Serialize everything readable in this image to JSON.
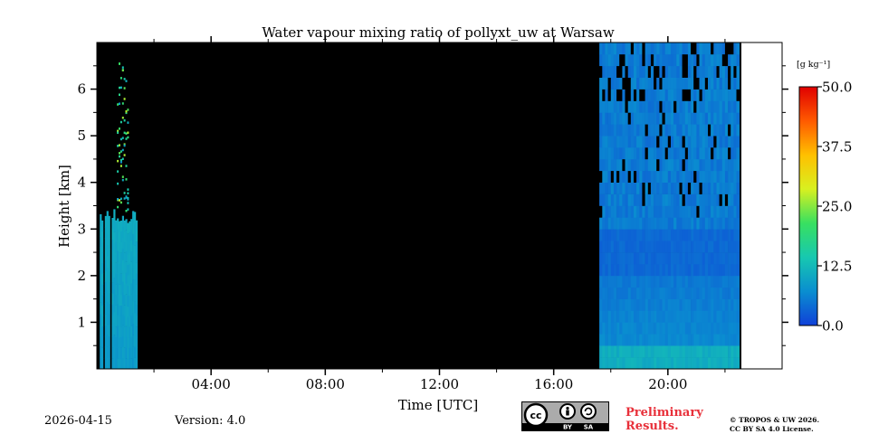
{
  "chart_data": {
    "type": "heatmap",
    "title": "Water vapour mixing ratio of pollyxt_uw at Warsaw",
    "xlabel": "Time [UTC]",
    "ylabel": "Height [km]",
    "xlim_hours": [
      0,
      24
    ],
    "ylim_km": [
      0,
      7
    ],
    "x_ticks": [
      {
        "value": 4,
        "label": "04:00"
      },
      {
        "value": 8,
        "label": "08:00"
      },
      {
        "value": 12,
        "label": "12:00"
      },
      {
        "value": 16,
        "label": "16:00"
      },
      {
        "value": 20,
        "label": "20:00"
      }
    ],
    "y_ticks": [
      {
        "value": 1,
        "label": "1"
      },
      {
        "value": 2,
        "label": "2"
      },
      {
        "value": 3,
        "label": "3"
      },
      {
        "value": 4,
        "label": "4"
      },
      {
        "value": 5,
        "label": "5"
      },
      {
        "value": 6,
        "label": "6"
      }
    ],
    "colorbar": {
      "label": "[g kg⁻¹]",
      "range": [
        0,
        50
      ],
      "ticks": [
        {
          "value": 0,
          "label": "0.0"
        },
        {
          "value": 12.5,
          "label": "12.5"
        },
        {
          "value": 25,
          "label": "25.0"
        },
        {
          "value": 37.5,
          "label": "37.5"
        },
        {
          "value": 50,
          "label": "50.0"
        }
      ],
      "colors": [
        "#1040d8",
        "#0a8ed0",
        "#17c8b0",
        "#38e060",
        "#d8f020",
        "#ffc000",
        "#ff5a00",
        "#e00000"
      ]
    },
    "no_data_color": "#000000",
    "segments": [
      {
        "name": "early-morning-profiles",
        "time_start": 0.1,
        "time_end": 1.4,
        "moist_top_km": 3.4,
        "value_low": 8.0,
        "value_high": 10.0
      },
      {
        "name": "no-data-period",
        "time_start": 1.4,
        "time_end": 17.6,
        "value": null
      },
      {
        "name": "evening-profiles",
        "time_start": 17.6,
        "time_end": 22.5,
        "top_km": 7.0,
        "value_low": 3.0,
        "value_high": 7.0
      }
    ]
  },
  "footer": {
    "date": "2026-04-15",
    "version": "Version: 4.0",
    "cc_badge": {
      "cc": "cc",
      "by": "BY",
      "sa": "SA"
    },
    "preliminary": [
      "Preliminary",
      "Results."
    ],
    "license": [
      "© TROPOS & UW 2026.",
      "CC BY SA 4.0 License."
    ],
    "preliminary_color": "#e8303a"
  }
}
